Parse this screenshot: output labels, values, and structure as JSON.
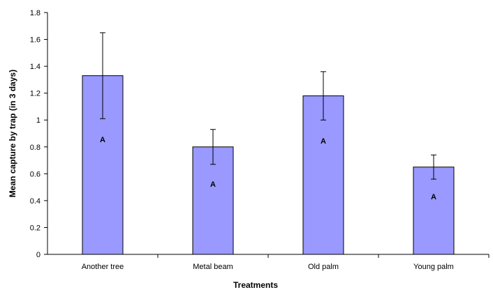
{
  "chart_data": {
    "type": "bar",
    "title": "",
    "xlabel": "Treatments",
    "ylabel": "Mean capture by trap (in 3 days)",
    "categories": [
      "Another tree",
      "Metal beam",
      "Old palm",
      "Young palm"
    ],
    "values": [
      1.33,
      0.8,
      1.18,
      0.65
    ],
    "error_upper": [
      1.65,
      0.93,
      1.36,
      0.74
    ],
    "error_lower": [
      1.01,
      0.67,
      1.0,
      0.56
    ],
    "significance_labels": [
      "A",
      "A",
      "A",
      "A"
    ],
    "significance_label_y": [
      0.855,
      0.525,
      0.845,
      0.43
    ],
    "ylim": [
      0,
      1.8
    ],
    "yticks": [
      0,
      0.2,
      0.4,
      0.6,
      0.8,
      1,
      1.2,
      1.4,
      1.6,
      1.8
    ],
    "ytick_labels": [
      "0",
      "0.2",
      "0.4",
      "0.6",
      "0.8",
      "1",
      "1.2",
      "1.4",
      "1.6",
      "1.8"
    ],
    "grid": false,
    "legend": "none",
    "bar_color": "#9999ff",
    "bar_edge_color": "#000000"
  }
}
